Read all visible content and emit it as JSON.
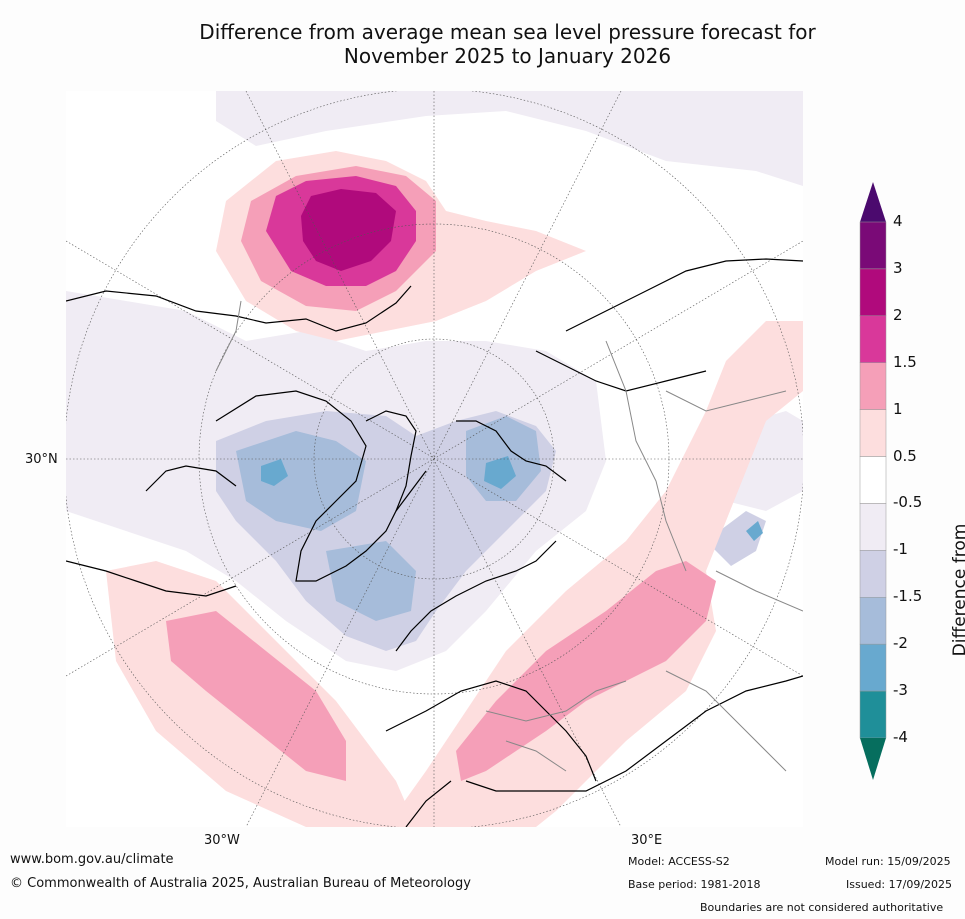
{
  "title_line1": "Difference from average mean sea level pressure forecast for",
  "title_line2": "November 2025 to January 2026",
  "labels": {
    "lat30n": "30°N",
    "lon30w": "30°W",
    "lon30e": "30°E"
  },
  "colorbar": {
    "title": "Difference from average (hPa)",
    "ticks": [
      "4",
      "3",
      "2",
      "1.5",
      "1",
      "0.5",
      "-0.5",
      "-1",
      "-1.5",
      "-2",
      "-3",
      "-4"
    ],
    "colors": [
      "#4b0a6e",
      "#7a0a77",
      "#b00a7c",
      "#d9389a",
      "#f59fb8",
      "#fddede",
      "#ffffff",
      "#f0ecf4",
      "#cfd0e5",
      "#a6bcda",
      "#68a9cf",
      "#1f8f99",
      "#066e5e"
    ]
  },
  "footer": {
    "url": "www.bom.gov.au/climate",
    "copyright": "© Commonwealth of Australia 2025, Australian Bureau of Meteorology",
    "model": "Model: ACCESS-S2",
    "base_period": "Base period: 1981-2018",
    "model_run": "Model run: 15/09/2025",
    "issued": "Issued: 17/09/2025",
    "boundaries": "Boundaries are not considered authoritative"
  }
}
